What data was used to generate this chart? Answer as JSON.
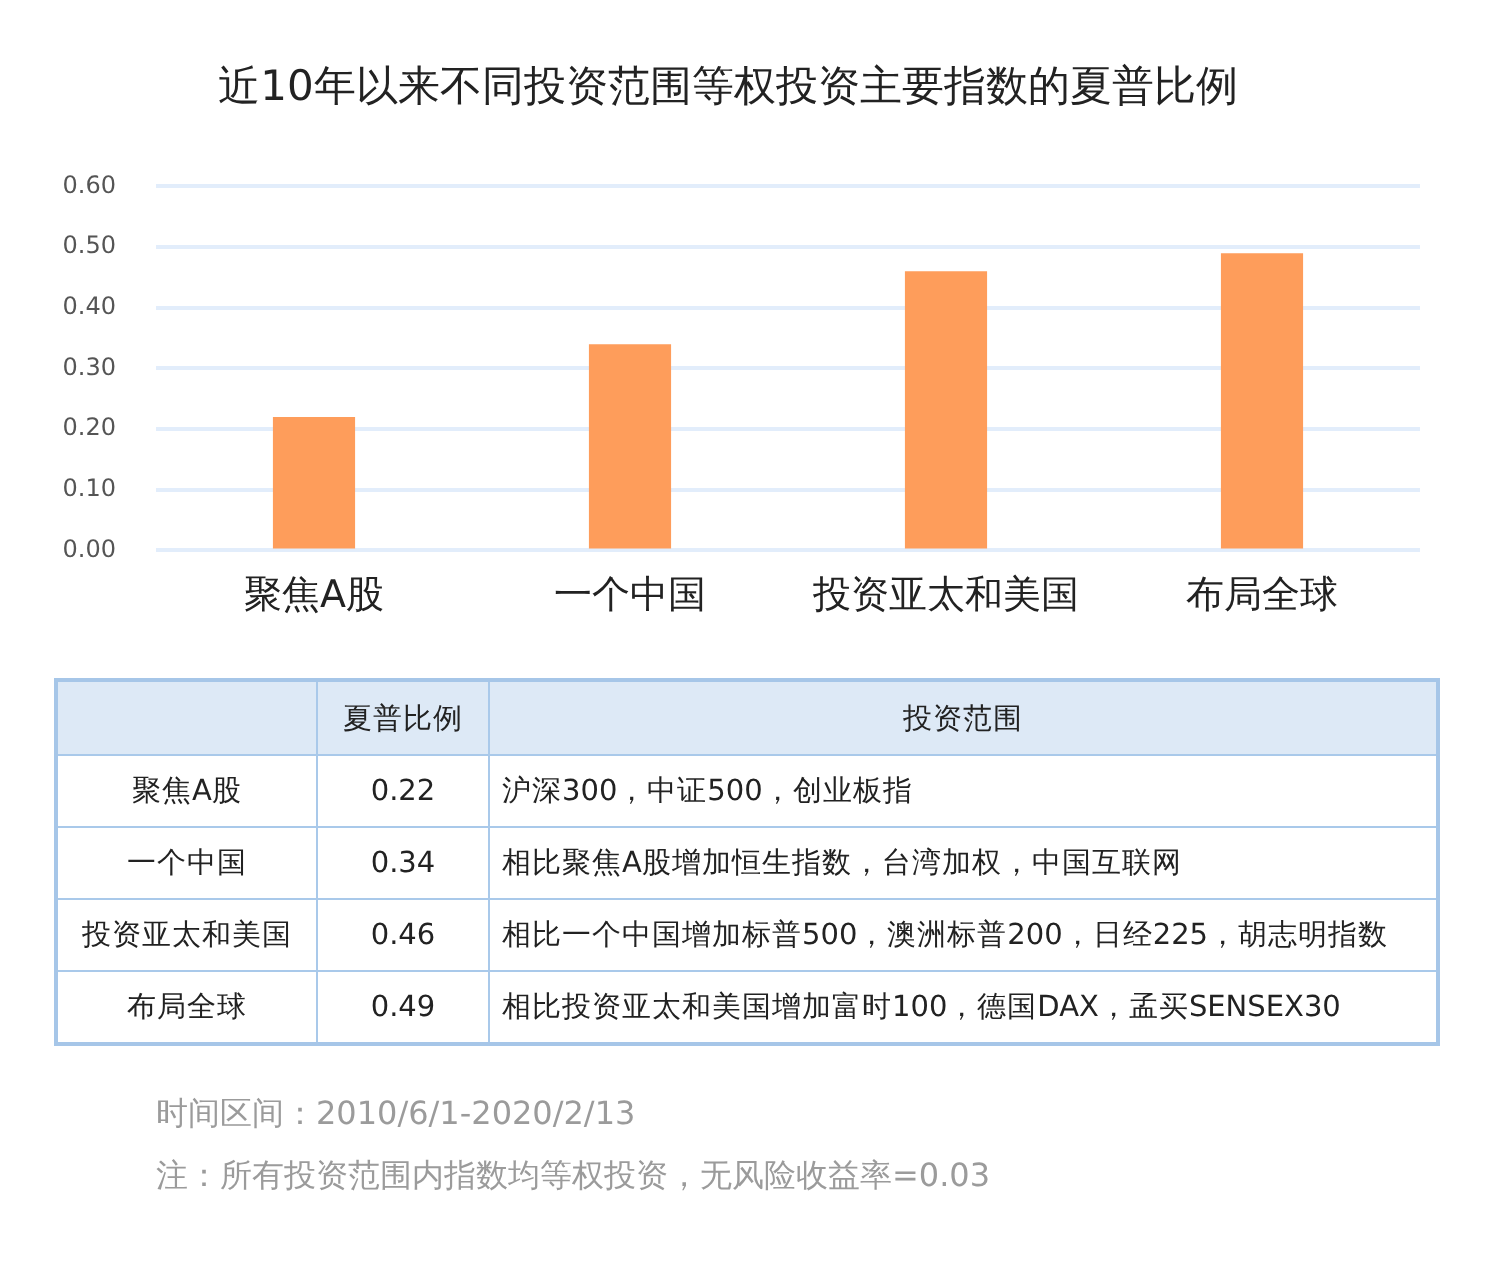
{
  "chart_data": {
    "type": "bar",
    "title": "近10年以来不同投资范围等权投资主要指数的夏普比例",
    "categories": [
      "聚焦A股",
      "一个中国",
      "投资亚太和美国",
      "布局全球"
    ],
    "values": [
      0.22,
      0.34,
      0.46,
      0.49
    ],
    "color": "#fe9d5b",
    "ylim": [
      0,
      0.6
    ],
    "yticks": [
      {
        "value": 0,
        "label": "0.00"
      },
      {
        "value": 0.1,
        "label": "0.10"
      },
      {
        "value": 0.2,
        "label": "0.20"
      },
      {
        "value": 0.3,
        "label": "0.30"
      },
      {
        "value": 0.4,
        "label": "0.40"
      },
      {
        "value": 0.5,
        "label": "0.50"
      },
      {
        "value": 0.6,
        "label": "0.60"
      }
    ],
    "grid": "y",
    "annotations": [
      "夏普比例",
      "投资范围",
      "0.22",
      "沪深300，中证500，创业板指",
      "0.34",
      "相比聚焦A股增加恒生指数，台湾加权，中国互联网",
      "0.46",
      "相比一个中国增加标普500，澳洲标普200，日经225，胡志明指数",
      "0.49",
      "相比投资亚太和美国增加富时100，德国DAX，孟买SENSEX30",
      "时间区间：2010/6/1-2020/2/13",
      "注：所有投资范围内指数均等权投资，无风险收益率=0.03"
    ]
  }
}
